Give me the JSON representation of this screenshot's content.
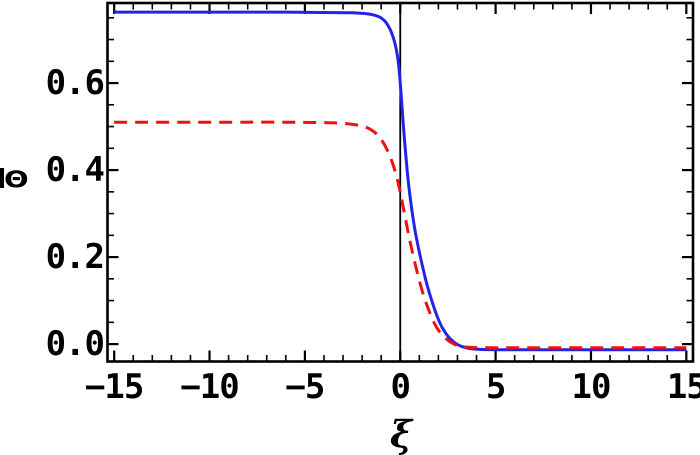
{
  "chart_data": {
    "type": "line",
    "title": "",
    "xlabel": "ξ",
    "ylabel": "Θ",
    "x_range": [
      -15.35,
      15.35
    ],
    "y_range": [
      -0.04,
      0.784
    ],
    "x_major_ticks": [
      -15,
      -10,
      -5,
      0,
      5,
      10,
      15
    ],
    "x_major_tick_labels": [
      "−15",
      "−10",
      "−5",
      "0",
      "5",
      "10",
      "15"
    ],
    "x_minor_tick_step": 1,
    "y_major_ticks": [
      0.0,
      0.2,
      0.4,
      0.6
    ],
    "y_major_tick_labels": [
      "0.0",
      "0.2",
      "0.4",
      "0.6"
    ],
    "y_minor_tick_step": 0.05,
    "frame": true,
    "grid": false,
    "legend": null,
    "vertical_line_x": 0,
    "axis_color": "#000000",
    "series": [
      {
        "name": "solid-blue-profile",
        "color": "#2323e8",
        "style": "solid",
        "width": 3,
        "left_asymptote": 0.763,
        "right_asymptote": -0.013,
        "points": [
          [
            -15,
            0.763
          ],
          [
            -10,
            0.763
          ],
          [
            -6,
            0.763
          ],
          [
            -3.5,
            0.762
          ],
          [
            -2.6,
            0.7615
          ],
          [
            -2.1,
            0.7605
          ],
          [
            -1.7,
            0.759
          ],
          [
            -1.35,
            0.756
          ],
          [
            -1.05,
            0.751
          ],
          [
            -0.8,
            0.742
          ],
          [
            -0.6,
            0.729
          ],
          [
            -0.45,
            0.715
          ],
          [
            -0.3,
            0.695
          ],
          [
            -0.18,
            0.671
          ],
          [
            -0.08,
            0.64
          ],
          [
            0,
            0.6
          ],
          [
            0.08,
            0.553
          ],
          [
            0.16,
            0.505
          ],
          [
            0.25,
            0.455
          ],
          [
            0.35,
            0.405
          ],
          [
            0.47,
            0.355
          ],
          [
            0.62,
            0.305
          ],
          [
            0.78,
            0.26
          ],
          [
            0.95,
            0.222
          ],
          [
            1.15,
            0.182
          ],
          [
            1.4,
            0.137
          ],
          [
            1.65,
            0.1
          ],
          [
            1.95,
            0.062
          ],
          [
            2.25,
            0.034
          ],
          [
            2.6,
            0.013
          ],
          [
            3,
            -0.001
          ],
          [
            3.5,
            -0.009
          ],
          [
            4.2,
            -0.012
          ],
          [
            6,
            -0.013
          ],
          [
            10,
            -0.013
          ],
          [
            15,
            -0.013
          ]
        ]
      },
      {
        "name": "dashed-red-profile",
        "color": "#ee1111",
        "style": "dashed",
        "dash": [
          13,
          8
        ],
        "width": 3,
        "left_asymptote": 0.51,
        "right_asymptote": -0.009,
        "points": [
          [
            -15,
            0.51
          ],
          [
            -10,
            0.51
          ],
          [
            -6,
            0.51
          ],
          [
            -4,
            0.509
          ],
          [
            -3.2,
            0.508
          ],
          [
            -2.6,
            0.5055
          ],
          [
            -2.1,
            0.502
          ],
          [
            -1.75,
            0.4975
          ],
          [
            -1.45,
            0.4905
          ],
          [
            -1.2,
            0.4815
          ],
          [
            -1,
            0.4705
          ],
          [
            -0.8,
            0.456
          ],
          [
            -0.6,
            0.438
          ],
          [
            -0.42,
            0.418
          ],
          [
            -0.26,
            0.396
          ],
          [
            -0.12,
            0.3725
          ],
          [
            0,
            0.349
          ],
          [
            0.12,
            0.3225
          ],
          [
            0.26,
            0.291
          ],
          [
            0.42,
            0.2555
          ],
          [
            0.6,
            0.2185
          ],
          [
            0.8,
            0.181
          ],
          [
            1,
            0.146
          ],
          [
            1.25,
            0.108
          ],
          [
            1.5,
            0.0775
          ],
          [
            1.8,
            0.047
          ],
          [
            2.1,
            0.026
          ],
          [
            2.45,
            0.0105
          ],
          [
            2.85,
            -0.0005
          ],
          [
            3.3,
            -0.006
          ],
          [
            4,
            -0.008
          ],
          [
            6,
            -0.0085
          ],
          [
            10,
            -0.0085
          ],
          [
            15,
            -0.0085
          ]
        ]
      }
    ]
  }
}
